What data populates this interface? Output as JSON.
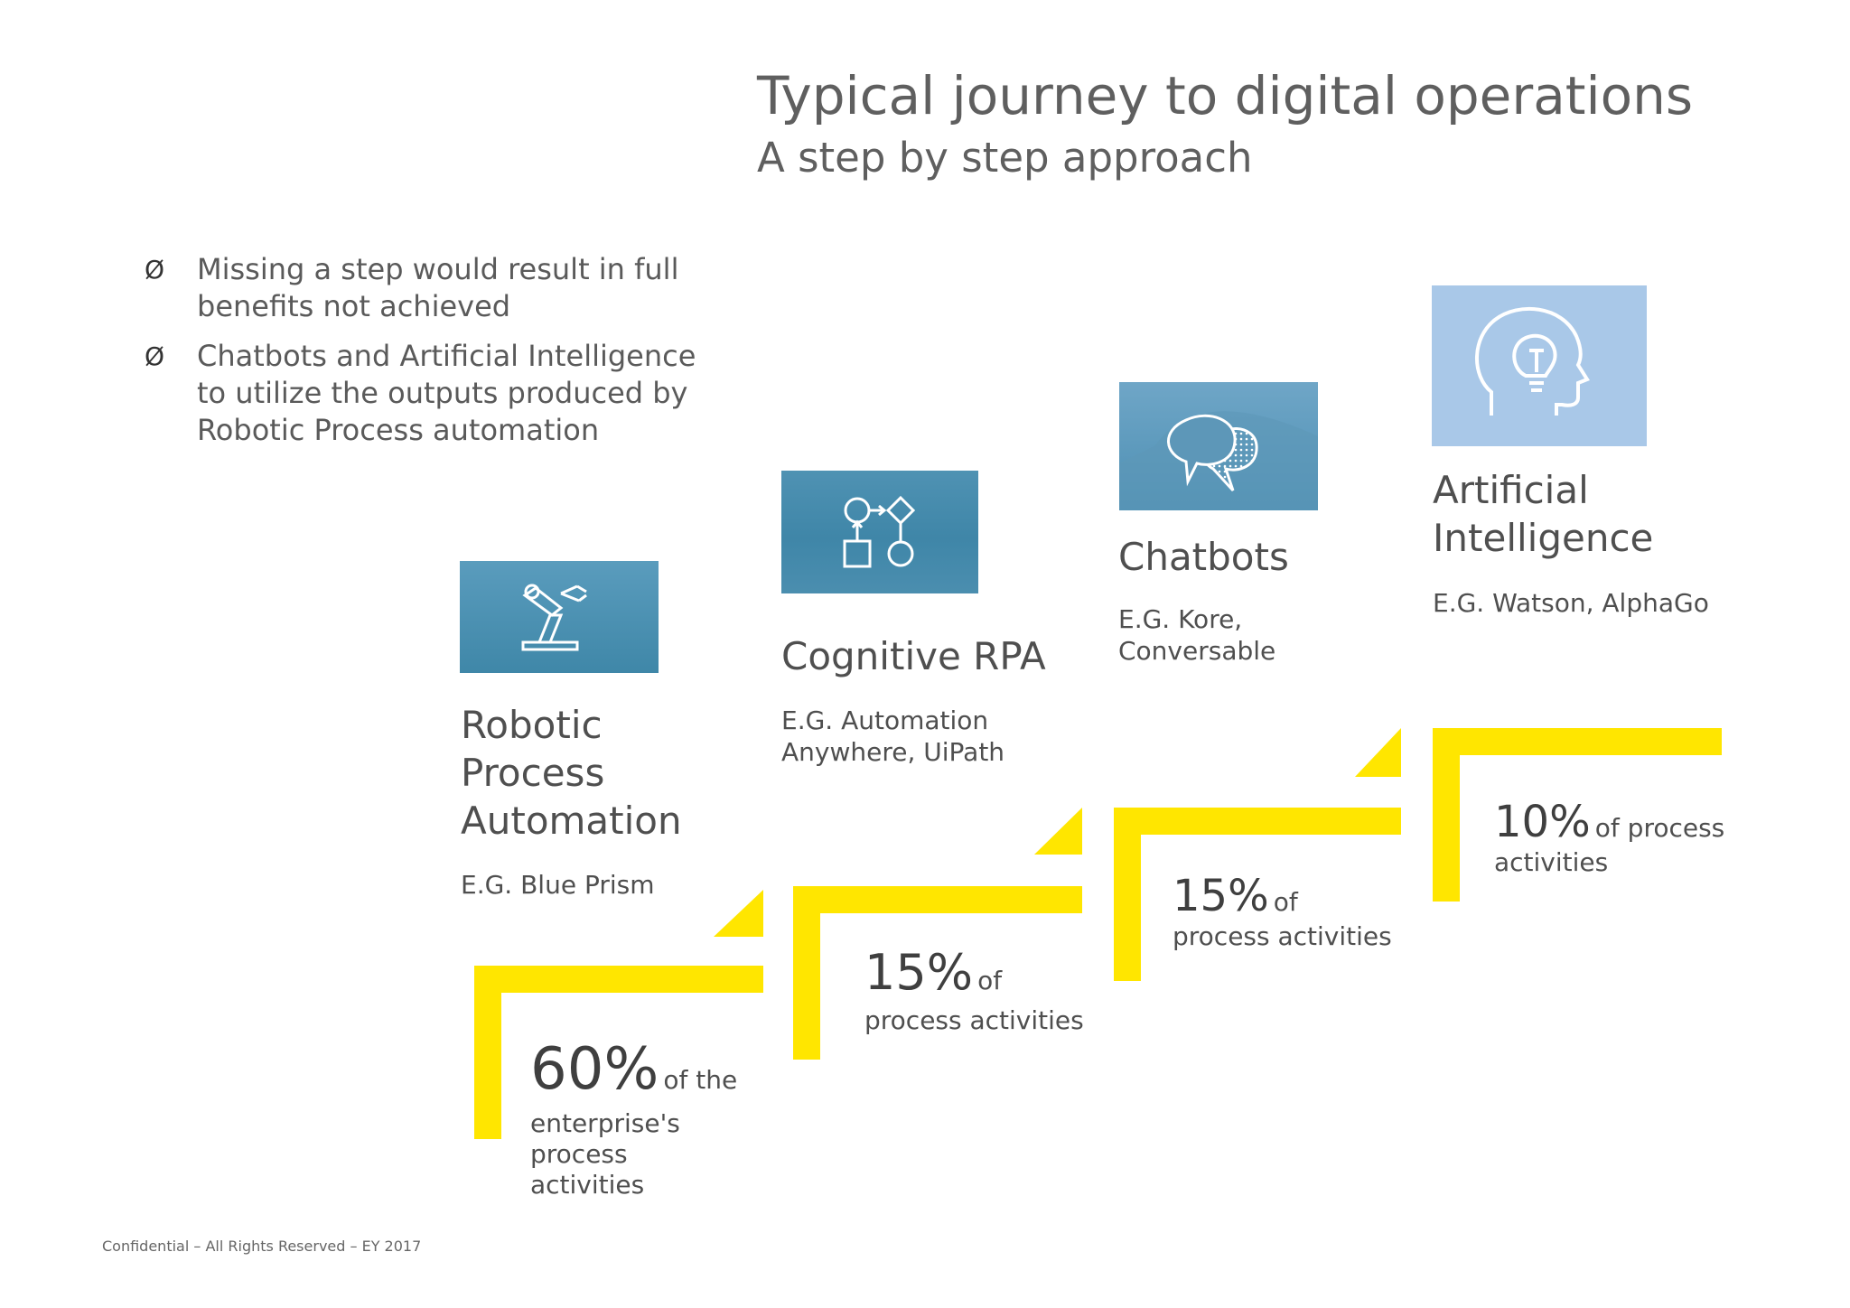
{
  "header": {
    "title": "Typical journey to digital operations",
    "subtitle": "A step by step approach"
  },
  "bullets": [
    {
      "marker": "Ø",
      "text": "Missing a step would result in full benefits not achieved"
    },
    {
      "marker": "Ø",
      "text": "Chatbots and Artificial Intelligence to utilize the outputs produced by Robotic Process automation"
    }
  ],
  "stages": [
    {
      "icon": "robotic-arm-icon",
      "name": "Robotic Process Automation",
      "example": "E.G. Blue Prism",
      "pct": "60%",
      "pct_word": "of the",
      "pct_rest": "enterprise's process activities"
    },
    {
      "icon": "process-flow-icon",
      "name": "Cognitive RPA",
      "example": "E.G. Automation Anywhere, UiPath",
      "pct": "15%",
      "pct_word": "of",
      "pct_rest": "process activities"
    },
    {
      "icon": "chat-bubbles-icon",
      "name": "Chatbots",
      "example": "E.G. Kore, Conversable",
      "pct": "15%",
      "pct_word": "of",
      "pct_rest": "process activities"
    },
    {
      "icon": "head-lightbulb-icon",
      "name": "Artificial Intelligence",
      "example": "E.G. Watson, AlphaGo",
      "pct": "10%",
      "pct_word": "of process",
      "pct_rest": "activities"
    }
  ],
  "colors": {
    "accent": "#ffe600",
    "tile_blue": "#4a8fb0",
    "tile_light": "#a9c8e8"
  },
  "footer": {
    "text": "Confidential – All Rights Reserved – EY 2017"
  }
}
